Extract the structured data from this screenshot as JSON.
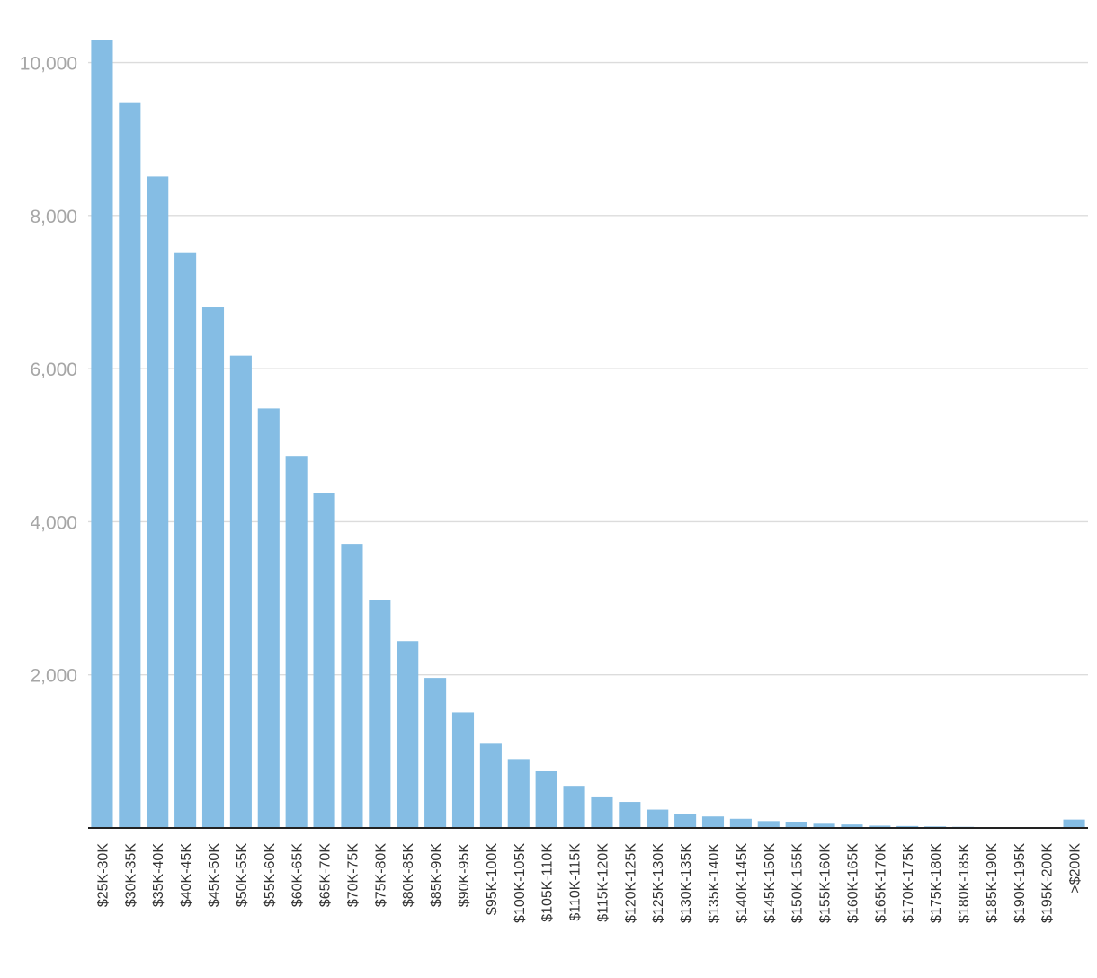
{
  "chart_data": {
    "type": "bar",
    "title": "",
    "xlabel": "",
    "ylabel": "",
    "ylim": [
      0,
      10300
    ],
    "y_ticks": [
      {
        "value": 2000,
        "label": "2,000"
      },
      {
        "value": 4000,
        "label": "4,000"
      },
      {
        "value": 6000,
        "label": "6,000"
      },
      {
        "value": 8000,
        "label": "8,000"
      },
      {
        "value": 10000,
        "label": "10,000"
      }
    ],
    "grid": true,
    "bar_color": "#85bde4",
    "categories": [
      "$25K-30K",
      "$30K-35K",
      "$35K-40K",
      "$40K-45K",
      "$45K-50K",
      "$50K-55K",
      "$55K-60K",
      "$60K-65K",
      "$65K-70K",
      "$70K-75K",
      "$75K-80K",
      "$80K-85K",
      "$85K-90K",
      "$90K-95K",
      "$95K-100K",
      "$100K-105K",
      "$105K-110K",
      "$110K-115K",
      "$115K-120K",
      "$120K-125K",
      "$125K-130K",
      "$130K-135K",
      "$135K-140K",
      "$140K-145K",
      "$145K-150K",
      "$150K-155K",
      "$155K-160K",
      "$160K-165K",
      "$165K-170K",
      "$170K-175K",
      "$175K-180K",
      "$180K-185K",
      "$185K-190K",
      "$190K-195K",
      "$195K-200K",
      ">$200K"
    ],
    "values": [
      10300,
      9470,
      8510,
      7520,
      6800,
      6170,
      5480,
      4860,
      4370,
      3710,
      2980,
      2440,
      1960,
      1510,
      1100,
      900,
      740,
      550,
      400,
      340,
      240,
      180,
      150,
      120,
      90,
      75,
      55,
      45,
      30,
      25,
      20,
      15,
      10,
      0,
      0,
      110
    ]
  }
}
